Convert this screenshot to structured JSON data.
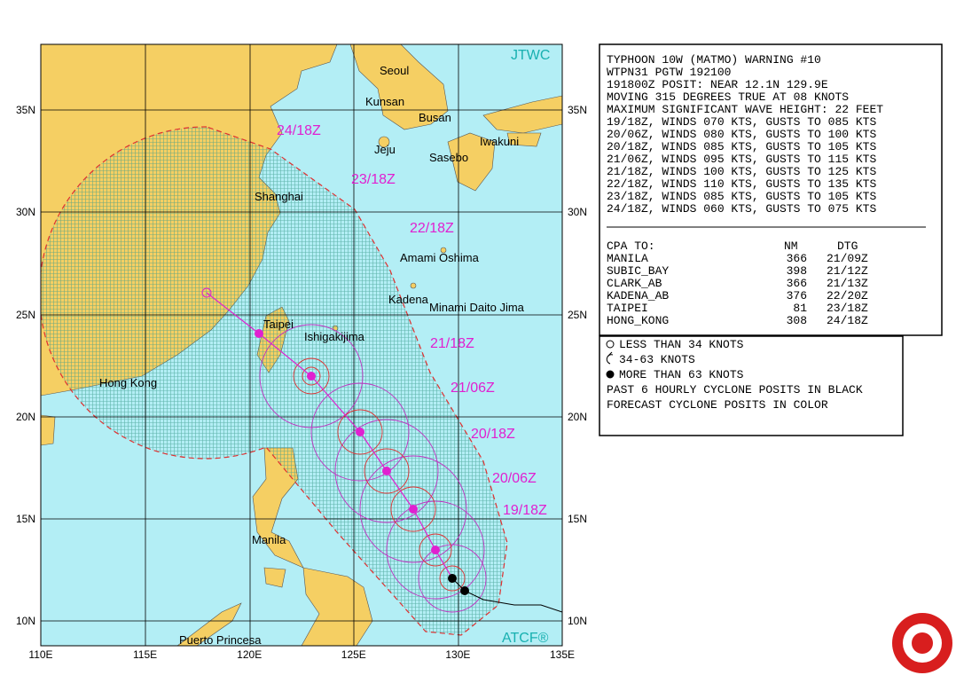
{
  "map": {
    "jtwc": "JTWC",
    "atcf": "ATCF®",
    "lat_labels": [
      "35N",
      "30N",
      "25N",
      "20N",
      "15N",
      "10N"
    ],
    "lon_labels": [
      "110E",
      "115E",
      "120E",
      "125E",
      "130E",
      "135E"
    ],
    "places": [
      "Seoul",
      "Kunsan",
      "Busan",
      "Jeju",
      "Iwakuni",
      "Sasebo",
      "Shanghai",
      "Amami Oshima",
      "Kadena",
      "Minami Daito Jima",
      "Taipei",
      "Ishigakijima",
      "Hong Kong",
      "Manila",
      "Puerto Princesa"
    ],
    "forecast_labels": [
      "19/18Z",
      "20/06Z",
      "20/18Z",
      "21/06Z",
      "21/18Z",
      "22/18Z",
      "23/18Z",
      "24/18Z"
    ]
  },
  "warning": {
    "lines": [
      "TYPHOON 10W (MATMO) WARNING #10",
      "WTPN31 PGTW 192100",
      "191800Z POSIT: NEAR 12.1N 129.9E",
      "MOVING 315 DEGREES TRUE AT 08 KNOTS",
      "MAXIMUM SIGNIFICANT WAVE HEIGHT: 22 FEET",
      "19/18Z, WINDS 070 KTS, GUSTS TO 085 KTS",
      "20/06Z, WINDS 080 KTS, GUSTS TO 100 KTS",
      "20/18Z, WINDS 085 KTS, GUSTS TO 105 KTS",
      "21/06Z, WINDS 095 KTS, GUSTS TO 115 KTS",
      "21/18Z, WINDS 100 KTS, GUSTS TO 125 KTS",
      "22/18Z, WINDS 110 KTS, GUSTS TO 135 KTS",
      "23/18Z, WINDS 085 KTS, GUSTS TO 105 KTS",
      "24/18Z, WINDS 060 KTS, GUSTS TO 075 KTS"
    ]
  },
  "cpa": {
    "header": [
      "CPA TO:",
      "NM",
      "DTG"
    ],
    "rows": [
      [
        "MANILA",
        "366",
        "21/09Z"
      ],
      [
        "SUBIC_BAY",
        "398",
        "21/12Z"
      ],
      [
        "CLARK_AB",
        "366",
        "21/13Z"
      ],
      [
        "KADENA_AB",
        "376",
        "22/20Z"
      ],
      [
        "TAIPEI",
        "81",
        "23/18Z"
      ],
      [
        "HONG_KONG",
        "308",
        "24/18Z"
      ]
    ]
  },
  "legend": {
    "items": [
      "LESS THAN 34 KNOTS",
      "34-63 KNOTS",
      "MORE THAN 63 KNOTS",
      "PAST 6 HOURLY CYCLONE POSITS IN BLACK",
      "FORECAST CYCLONE POSITS IN COLOR"
    ]
  }
}
